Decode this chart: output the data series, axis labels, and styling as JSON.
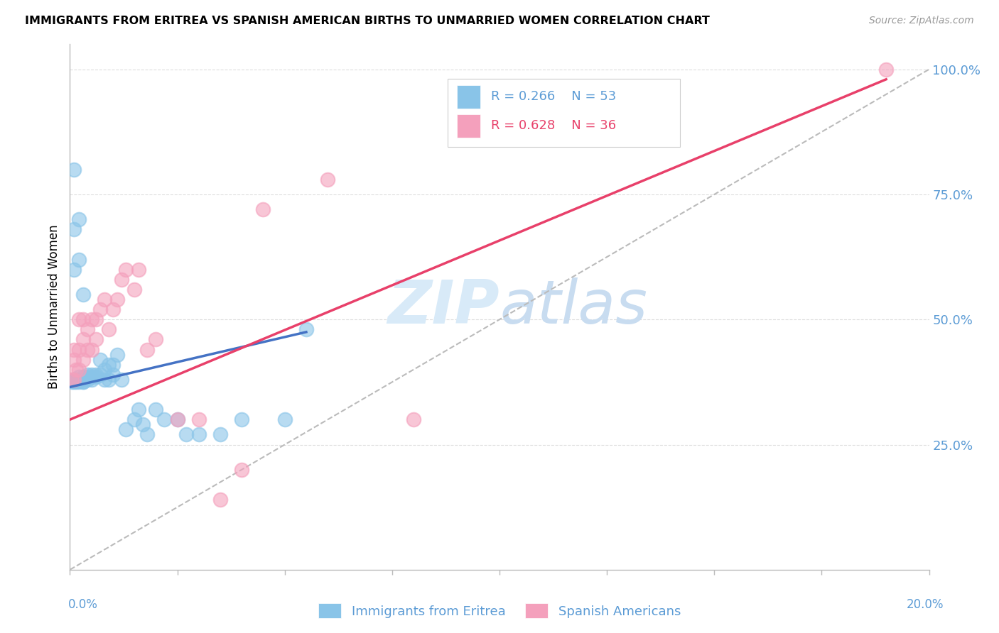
{
  "title": "IMMIGRANTS FROM ERITREA VS SPANISH AMERICAN BIRTHS TO UNMARRIED WOMEN CORRELATION CHART",
  "source": "Source: ZipAtlas.com",
  "ylabel": "Births to Unmarried Women",
  "yaxis_ticks": [
    "100.0%",
    "75.0%",
    "50.0%",
    "25.0%"
  ],
  "yaxis_tick_vals": [
    1.0,
    0.75,
    0.5,
    0.25
  ],
  "legend_blue_label": "Immigrants from Eritrea",
  "legend_pink_label": "Spanish Americans",
  "legend_blue_R": "0.266",
  "legend_blue_N": "53",
  "legend_pink_R": "0.628",
  "legend_pink_N": "36",
  "blue_scatter_color": "#89C4E8",
  "pink_scatter_color": "#F4A0BC",
  "blue_line_color": "#4472C4",
  "pink_line_color": "#E8406A",
  "diag_line_color": "#BBBBBB",
  "grid_color": "#DDDDDD",
  "axis_label_color": "#5B9BD5",
  "text_color": "#333333",
  "watermark_color": "#D8EAF8",
  "xlim": [
    0.0,
    0.2
  ],
  "ylim": [
    0.0,
    1.05
  ],
  "blue_line_x0": 0.0,
  "blue_line_y0": 0.365,
  "blue_line_x1": 0.055,
  "blue_line_y1": 0.475,
  "pink_line_x0": 0.0,
  "pink_line_y0": 0.3,
  "pink_line_x1": 0.19,
  "pink_line_y1": 0.98,
  "blue_points_x": [
    0.0005,
    0.001,
    0.001,
    0.001,
    0.0015,
    0.0015,
    0.002,
    0.002,
    0.002,
    0.002,
    0.0025,
    0.003,
    0.003,
    0.003,
    0.003,
    0.004,
    0.004,
    0.004,
    0.005,
    0.005,
    0.005,
    0.006,
    0.006,
    0.007,
    0.007,
    0.008,
    0.008,
    0.009,
    0.009,
    0.01,
    0.01,
    0.011,
    0.012,
    0.013,
    0.015,
    0.016,
    0.017,
    0.018,
    0.02,
    0.022,
    0.025,
    0.027,
    0.03,
    0.035,
    0.04,
    0.05,
    0.055,
    0.001,
    0.002,
    0.003,
    0.001,
    0.002,
    0.001
  ],
  "blue_points_y": [
    0.375,
    0.375,
    0.38,
    0.38,
    0.375,
    0.38,
    0.375,
    0.38,
    0.38,
    0.385,
    0.38,
    0.375,
    0.375,
    0.38,
    0.385,
    0.38,
    0.385,
    0.39,
    0.38,
    0.385,
    0.39,
    0.385,
    0.39,
    0.39,
    0.42,
    0.38,
    0.4,
    0.38,
    0.41,
    0.39,
    0.41,
    0.43,
    0.38,
    0.28,
    0.3,
    0.32,
    0.29,
    0.27,
    0.32,
    0.3,
    0.3,
    0.27,
    0.27,
    0.27,
    0.3,
    0.3,
    0.48,
    0.6,
    0.62,
    0.55,
    0.68,
    0.7,
    0.8
  ],
  "pink_points_x": [
    0.0005,
    0.001,
    0.001,
    0.001,
    0.0015,
    0.002,
    0.002,
    0.002,
    0.003,
    0.003,
    0.003,
    0.004,
    0.004,
    0.005,
    0.005,
    0.006,
    0.006,
    0.007,
    0.008,
    0.009,
    0.01,
    0.011,
    0.012,
    0.013,
    0.015,
    0.016,
    0.018,
    0.02,
    0.025,
    0.03,
    0.035,
    0.04,
    0.045,
    0.06,
    0.08,
    0.19
  ],
  "pink_points_y": [
    0.38,
    0.38,
    0.42,
    0.44,
    0.4,
    0.4,
    0.44,
    0.5,
    0.42,
    0.46,
    0.5,
    0.44,
    0.48,
    0.44,
    0.5,
    0.46,
    0.5,
    0.52,
    0.54,
    0.48,
    0.52,
    0.54,
    0.58,
    0.6,
    0.56,
    0.6,
    0.44,
    0.46,
    0.3,
    0.3,
    0.14,
    0.2,
    0.72,
    0.78,
    0.3,
    1.0
  ]
}
